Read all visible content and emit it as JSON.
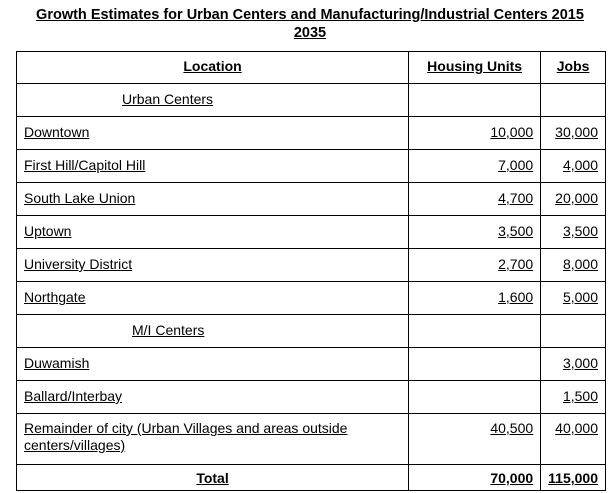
{
  "title": "Growth Estimates for Urban Centers and Manufacturing/Industrial Centers 2015",
  "title_line2": "2035",
  "headers": {
    "location": "Location",
    "housing": "Housing Units",
    "jobs": "Jobs"
  },
  "sections": {
    "urban": "Urban Centers",
    "mi": "M/I Centers"
  },
  "rows": [
    {
      "location": "Downtown",
      "housing": "10,000",
      "jobs": "30,000"
    },
    {
      "location": "First Hill/Capitol Hill",
      "housing": "7,000",
      "jobs": "4,000"
    },
    {
      "location": "South Lake Union",
      "housing": "4,700",
      "jobs": "20,000"
    },
    {
      "location": "Uptown",
      "housing": "3,500",
      "jobs": "3,500"
    },
    {
      "location": "University District",
      "housing": "2,700",
      "jobs": "8,000"
    },
    {
      "location": "Northgate",
      "housing": "1,600",
      "jobs": "5,000"
    },
    {
      "location": "Duwamish",
      "housing": "",
      "jobs": "3,000"
    },
    {
      "location": "Ballard/Interbay",
      "housing": "",
      "jobs": "1,500"
    },
    {
      "location": "Remainder of city (Urban Villages and areas outside centers/villages)",
      "housing": "40,500",
      "jobs": "40,000"
    }
  ],
  "total": {
    "location": "Total",
    "housing": "70,000",
    "jobs": "115,000"
  }
}
